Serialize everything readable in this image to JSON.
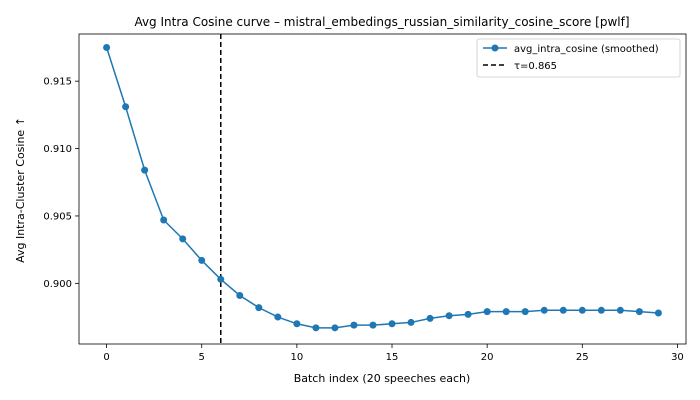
{
  "chart_data": {
    "type": "line",
    "title": "Avg Intra Cosine curve – mistral_embedings_russian_similarity_cosine_score [pwlf]",
    "xlabel": "Batch index (20 speeches each)",
    "ylabel": "Avg Intra-Cluster Cosine ↑",
    "xlim": [
      -1.45,
      30.45
    ],
    "ylim": [
      0.8955,
      0.9185
    ],
    "xticks": [
      0,
      5,
      10,
      15,
      20,
      25,
      30
    ],
    "yticks": [
      0.9,
      0.905,
      0.91,
      0.915
    ],
    "ytick_labels": [
      "0.900",
      "0.905",
      "0.910",
      "0.915"
    ],
    "grid": false,
    "legend": "top-right",
    "series": [
      {
        "name": "avg_intra_cosine (smoothed)",
        "color": "#1f77b4",
        "marker": "circle",
        "x": [
          0,
          1,
          2,
          3,
          4,
          5,
          6,
          7,
          8,
          9,
          10,
          11,
          12,
          13,
          14,
          15,
          16,
          17,
          18,
          19,
          20,
          21,
          22,
          23,
          24,
          25,
          26,
          27,
          28,
          29
        ],
        "y": [
          0.9175,
          0.9131,
          0.9084,
          0.9047,
          0.9033,
          0.9017,
          0.9003,
          0.8991,
          0.8982,
          0.8975,
          0.897,
          0.8967,
          0.8967,
          0.8969,
          0.8969,
          0.897,
          0.8971,
          0.8974,
          0.8976,
          0.8977,
          0.8979,
          0.8979,
          0.8979,
          0.898,
          0.898,
          0.898,
          0.898,
          0.898,
          0.8979,
          0.8978
        ]
      }
    ],
    "vline": {
      "x": 6,
      "label": "τ=0.865",
      "color": "#000000",
      "style": "dashed"
    }
  }
}
